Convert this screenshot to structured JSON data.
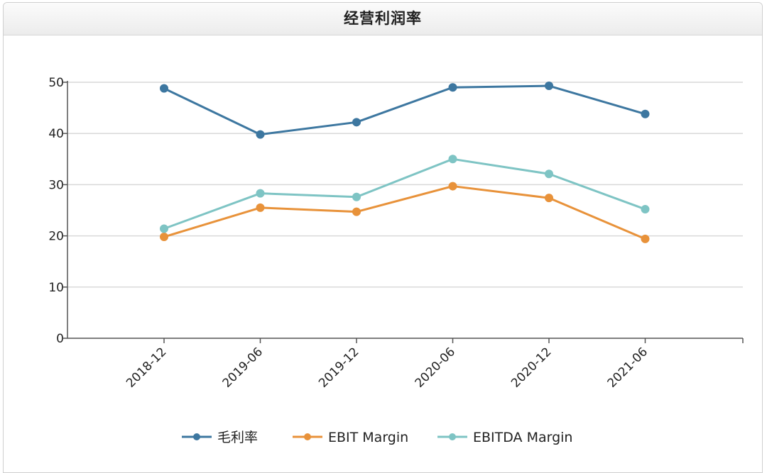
{
  "panel": {
    "title": "经营利润率"
  },
  "chart_data": {
    "type": "line",
    "title": "经营利润率",
    "categories": [
      "2018-12",
      "2019-06",
      "2019-12",
      "2020-06",
      "2020-12",
      "2021-06"
    ],
    "series": [
      {
        "name": "毛利率",
        "color": "#3d77a0",
        "values": [
          48.8,
          39.8,
          42.2,
          49.0,
          49.3,
          43.8
        ]
      },
      {
        "name": "EBIT Margin",
        "color": "#e8923a",
        "values": [
          19.8,
          25.5,
          24.7,
          29.7,
          27.4,
          19.4
        ]
      },
      {
        "name": "EBITDA Margin",
        "color": "#7ec4c4",
        "values": [
          21.4,
          28.3,
          27.6,
          35.0,
          32.1,
          25.2
        ]
      }
    ],
    "ylim": [
      0,
      50
    ],
    "yticks": [
      0,
      10,
      20,
      30,
      40,
      50
    ],
    "grid": true,
    "legend_position": "bottom"
  }
}
